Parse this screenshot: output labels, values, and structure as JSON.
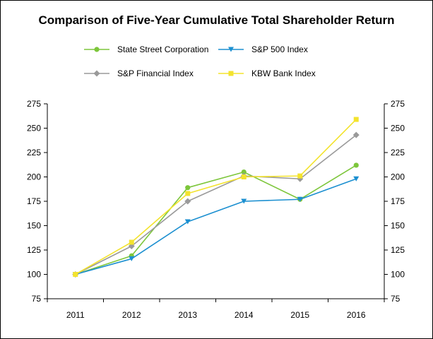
{
  "chart_data": {
    "type": "line",
    "title": "Comparison of Five-Year Cumulative Total Shareholder Return",
    "xlabel": "",
    "ylabel": "",
    "categories": [
      "2011",
      "2012",
      "2013",
      "2014",
      "2015",
      "2016"
    ],
    "ylim": [
      75,
      275
    ],
    "yticks": [
      75,
      100,
      125,
      150,
      175,
      200,
      225,
      250,
      275
    ],
    "legend_position": "top",
    "grid": false,
    "series": [
      {
        "name": "State Street Corporation",
        "color": "#7dc63b",
        "marker": "circle",
        "values": [
          100,
          119,
          189,
          205,
          177,
          212
        ]
      },
      {
        "name": "S&P 500 Index",
        "color": "#1b8fd0",
        "marker": "triangle-down",
        "values": [
          100,
          116,
          154,
          175,
          177,
          198
        ]
      },
      {
        "name": "S&P Financial Index",
        "color": "#9a9a9a",
        "marker": "diamond",
        "values": [
          100,
          129,
          175,
          201,
          198,
          243
        ]
      },
      {
        "name": "KBW Bank Index",
        "color": "#f3e32d",
        "marker": "square",
        "values": [
          100,
          133,
          183,
          200,
          201,
          259
        ]
      }
    ]
  }
}
